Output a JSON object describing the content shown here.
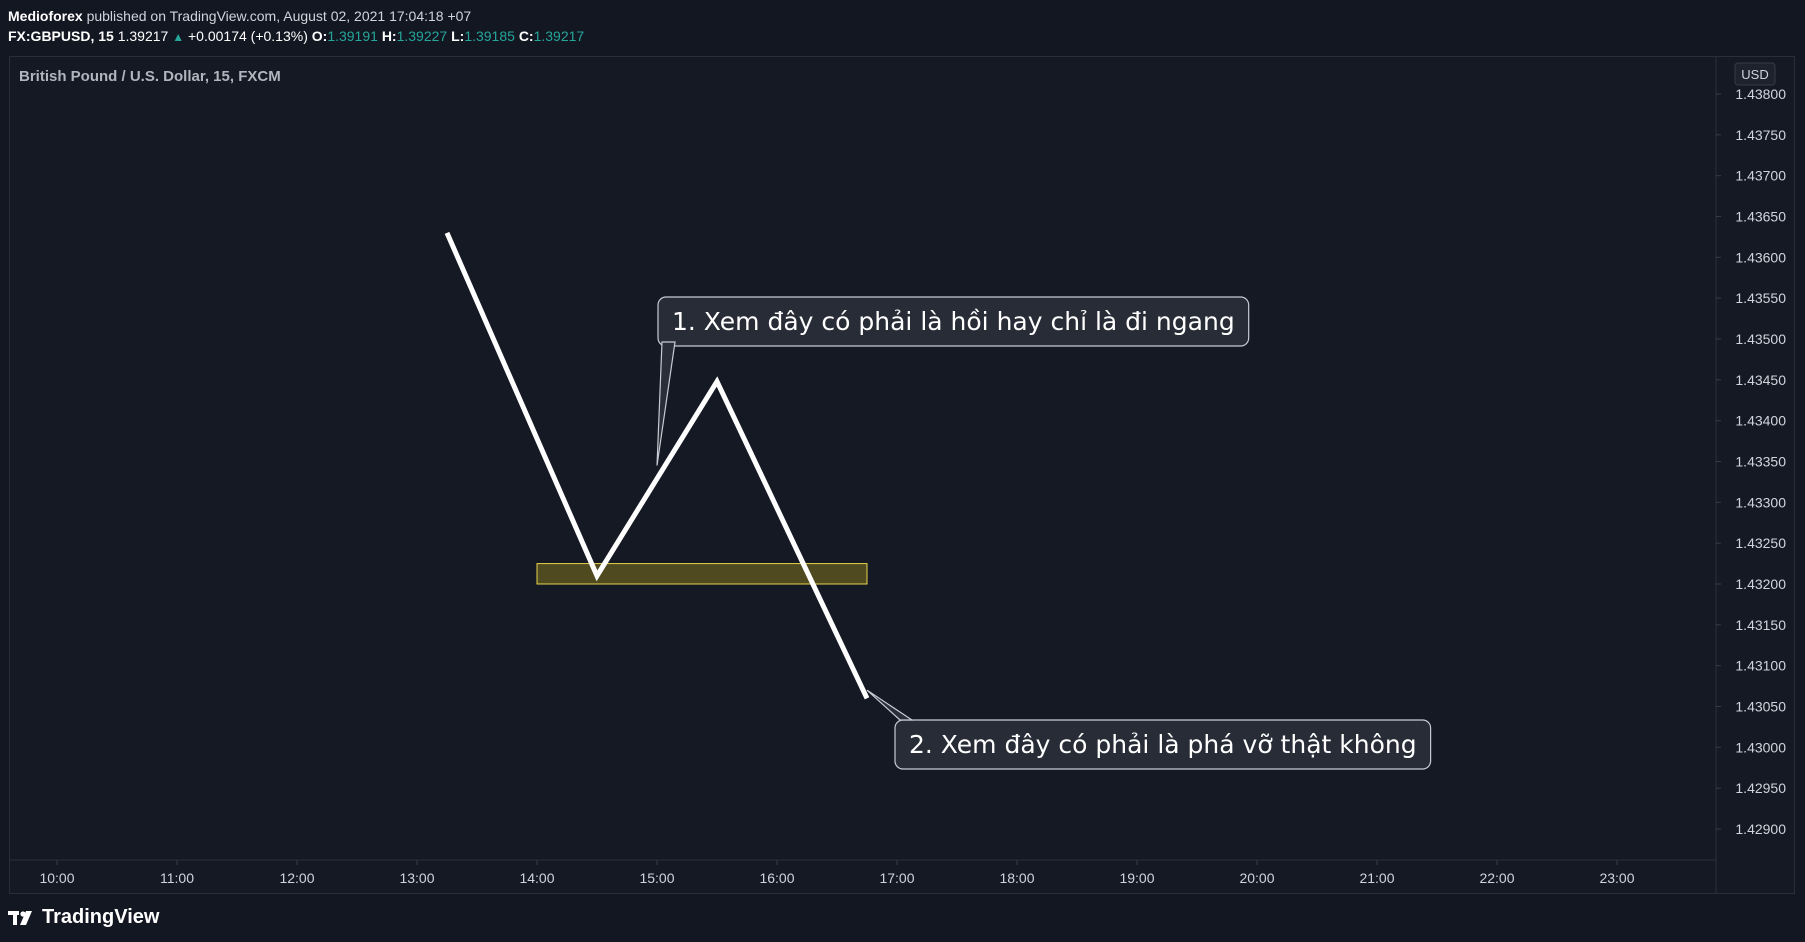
{
  "header": {
    "author": "Medioforex",
    "published_text": "published on TradingView.com, August 02, 2021 17:04:18 +07",
    "symbol": "FX:GBPUSD, 15",
    "last": "1.39217",
    "change": "+0.00174 (+0.13%)",
    "o_label": "O:",
    "o": "1.39191",
    "h_label": "H:",
    "h": "1.39227",
    "l_label": "L:",
    "l": "1.39185",
    "c_label": "C:",
    "c": "1.39217"
  },
  "footer": {
    "brand": "TradingView"
  },
  "colors": {
    "background": "#131722",
    "line": "#ffffff",
    "zone_fill": "#5a5420",
    "zone_border": "#e8d44d",
    "up": "#26a69a"
  },
  "chart_data": {
    "type": "line",
    "title": "British Pound / U.S. Dollar, 15, FXCM",
    "currency": "USD",
    "xlabel": "",
    "ylabel": "",
    "x_ticks": [
      "10:00",
      "11:00",
      "12:00",
      "13:00",
      "14:00",
      "15:00",
      "16:00",
      "17:00",
      "18:00",
      "19:00",
      "20:00",
      "21:00",
      "22:00",
      "23:00"
    ],
    "y_ticks": [
      "1.43800",
      "1.43750",
      "1.43700",
      "1.43650",
      "1.43600",
      "1.43550",
      "1.43500",
      "1.43450",
      "1.43400",
      "1.43350",
      "1.43300",
      "1.43250",
      "1.43200",
      "1.43150",
      "1.43100",
      "1.43050",
      "1.43000",
      "1.42950",
      "1.42900"
    ],
    "ylim": [
      1.4287,
      1.4385
    ],
    "grid": false,
    "series": [
      {
        "x": [
          "13:15",
          "14:30",
          "15:30",
          "16:45"
        ],
        "y": [
          1.4363,
          1.4321,
          1.43448,
          1.4306
        ]
      }
    ],
    "zone": {
      "x_start": "14:00",
      "x_end": "16:45",
      "y_low": 1.432,
      "y_high": 1.43225
    },
    "annotations": [
      {
        "text": "1. Xem đây có phải là hồi hay chỉ là đi ngang",
        "anchor_x": "15:00",
        "anchor_y": 1.43345
      },
      {
        "text": "2. Xem đây có phải là phá vỡ thật không",
        "anchor_x": "16:45",
        "anchor_y": 1.4307
      }
    ]
  }
}
